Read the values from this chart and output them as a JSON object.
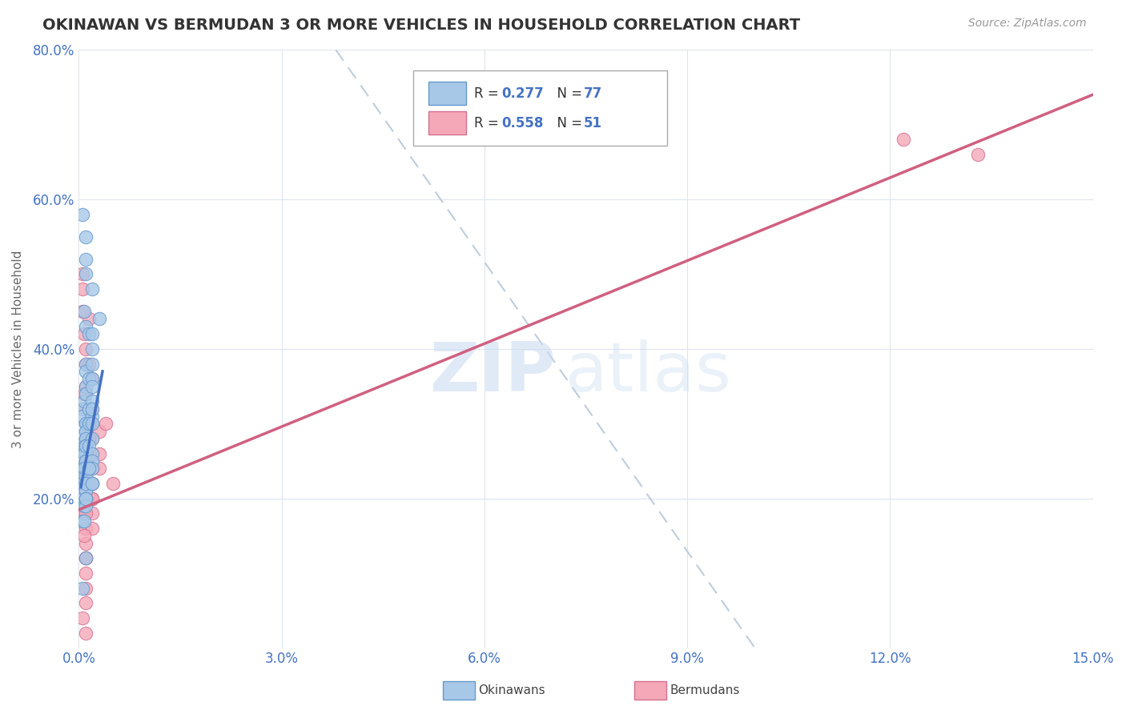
{
  "title": "OKINAWAN VS BERMUDAN 3 OR MORE VEHICLES IN HOUSEHOLD CORRELATION CHART",
  "source_text": "Source: ZipAtlas.com",
  "ylabel": "3 or more Vehicles in Household",
  "xlim": [
    0.0,
    0.15
  ],
  "ylim": [
    0.0,
    0.8
  ],
  "xticks": [
    0.0,
    0.03,
    0.06,
    0.09,
    0.12,
    0.15
  ],
  "xtick_labels": [
    "0.0%",
    "3.0%",
    "6.0%",
    "9.0%",
    "12.0%",
    "15.0%"
  ],
  "yticks": [
    0.0,
    0.2,
    0.4,
    0.6,
    0.8
  ],
  "ytick_labels": [
    "",
    "20.0%",
    "40.0%",
    "60.0%",
    "80.0%"
  ],
  "legend_r1_label": "R = 0.277  N = 77",
  "legend_r2_label": "R = 0.558  N = 51",
  "okinawan_color": "#a8c8e8",
  "bermudan_color": "#f4a8b8",
  "okinawan_edge_color": "#6699cc",
  "bermudan_edge_color": "#d47090",
  "okinawan_line_color": "#4472c4",
  "bermudan_line_color": "#d06080",
  "ref_line_color": "#b8c8d8",
  "watermark_zip": "ZIP",
  "watermark_atlas": "atlas",
  "background_color": "#ffffff",
  "grid_color": "#dde5ee",
  "okinawan_x": [
    0.001,
    0.0005,
    0.001,
    0.0008,
    0.001,
    0.002,
    0.001,
    0.0015,
    0.001,
    0.003,
    0.001,
    0.002,
    0.001,
    0.0005,
    0.001,
    0.0015,
    0.002,
    0.001,
    0.0008,
    0.001,
    0.002,
    0.001,
    0.0005,
    0.001,
    0.002,
    0.0015,
    0.001,
    0.002,
    0.001,
    0.0005,
    0.001,
    0.002,
    0.0015,
    0.001,
    0.0008,
    0.001,
    0.002,
    0.001,
    0.0005,
    0.001,
    0.002,
    0.001,
    0.0015,
    0.001,
    0.0008,
    0.001,
    0.002,
    0.001,
    0.0005,
    0.001,
    0.002,
    0.001,
    0.0015,
    0.001,
    0.0008,
    0.002,
    0.001,
    0.0005,
    0.001,
    0.002,
    0.001,
    0.0015,
    0.001,
    0.0008,
    0.001,
    0.002,
    0.001,
    0.0005,
    0.001,
    0.002,
    0.0015,
    0.001,
    0.0008,
    0.001,
    0.002,
    0.001,
    0.0005
  ],
  "okinawan_y": [
    0.28,
    0.58,
    0.52,
    0.45,
    0.43,
    0.48,
    0.55,
    0.42,
    0.5,
    0.44,
    0.38,
    0.4,
    0.35,
    0.32,
    0.37,
    0.36,
    0.42,
    0.3,
    0.33,
    0.29,
    0.36,
    0.34,
    0.31,
    0.27,
    0.38,
    0.32,
    0.26,
    0.35,
    0.3,
    0.24,
    0.28,
    0.33,
    0.3,
    0.25,
    0.27,
    0.29,
    0.31,
    0.26,
    0.23,
    0.28,
    0.32,
    0.27,
    0.3,
    0.24,
    0.26,
    0.27,
    0.3,
    0.25,
    0.22,
    0.25,
    0.28,
    0.24,
    0.27,
    0.22,
    0.24,
    0.26,
    0.23,
    0.2,
    0.22,
    0.25,
    0.21,
    0.24,
    0.21,
    0.19,
    0.22,
    0.24,
    0.2,
    0.17,
    0.2,
    0.22,
    0.24,
    0.19,
    0.17,
    0.2,
    0.22,
    0.12,
    0.08
  ],
  "bermudan_x": [
    0.001,
    0.0005,
    0.001,
    0.0008,
    0.002,
    0.001,
    0.0015,
    0.001,
    0.002,
    0.0005,
    0.001,
    0.0008,
    0.002,
    0.001,
    0.0015,
    0.001,
    0.002,
    0.0005,
    0.001,
    0.002,
    0.0008,
    0.001,
    0.0015,
    0.002,
    0.001,
    0.003,
    0.002,
    0.004,
    0.001,
    0.003,
    0.001,
    0.005,
    0.001,
    0.002,
    0.001,
    0.003,
    0.002,
    0.001,
    0.0005,
    0.001,
    0.002,
    0.001,
    0.0008,
    0.002,
    0.001,
    0.0015,
    0.001,
    0.002,
    0.001,
    0.122,
    0.133
  ],
  "bermudan_y": [
    0.4,
    0.5,
    0.35,
    0.42,
    0.3,
    0.38,
    0.44,
    0.32,
    0.36,
    0.48,
    0.28,
    0.34,
    0.26,
    0.3,
    0.38,
    0.24,
    0.28,
    0.45,
    0.22,
    0.32,
    0.18,
    0.25,
    0.28,
    0.2,
    0.16,
    0.29,
    0.22,
    0.3,
    0.14,
    0.26,
    0.12,
    0.22,
    0.1,
    0.18,
    0.08,
    0.24,
    0.16,
    0.06,
    0.04,
    0.12,
    0.2,
    0.22,
    0.15,
    0.24,
    0.18,
    0.28,
    0.2,
    0.22,
    0.02,
    0.68,
    0.66
  ],
  "bm_trendline_x0": 0.0,
  "bm_trendline_y0": 0.185,
  "bm_trendline_x1": 0.15,
  "bm_trendline_y1": 0.74,
  "ok_trendline_x0": 0.0003,
  "ok_trendline_y0": 0.215,
  "ok_trendline_x1": 0.0035,
  "ok_trendline_y1": 0.37,
  "ref_line_x0": 0.038,
  "ref_line_y0": 0.8,
  "ref_line_x1": 0.1,
  "ref_line_y1": 0.0
}
